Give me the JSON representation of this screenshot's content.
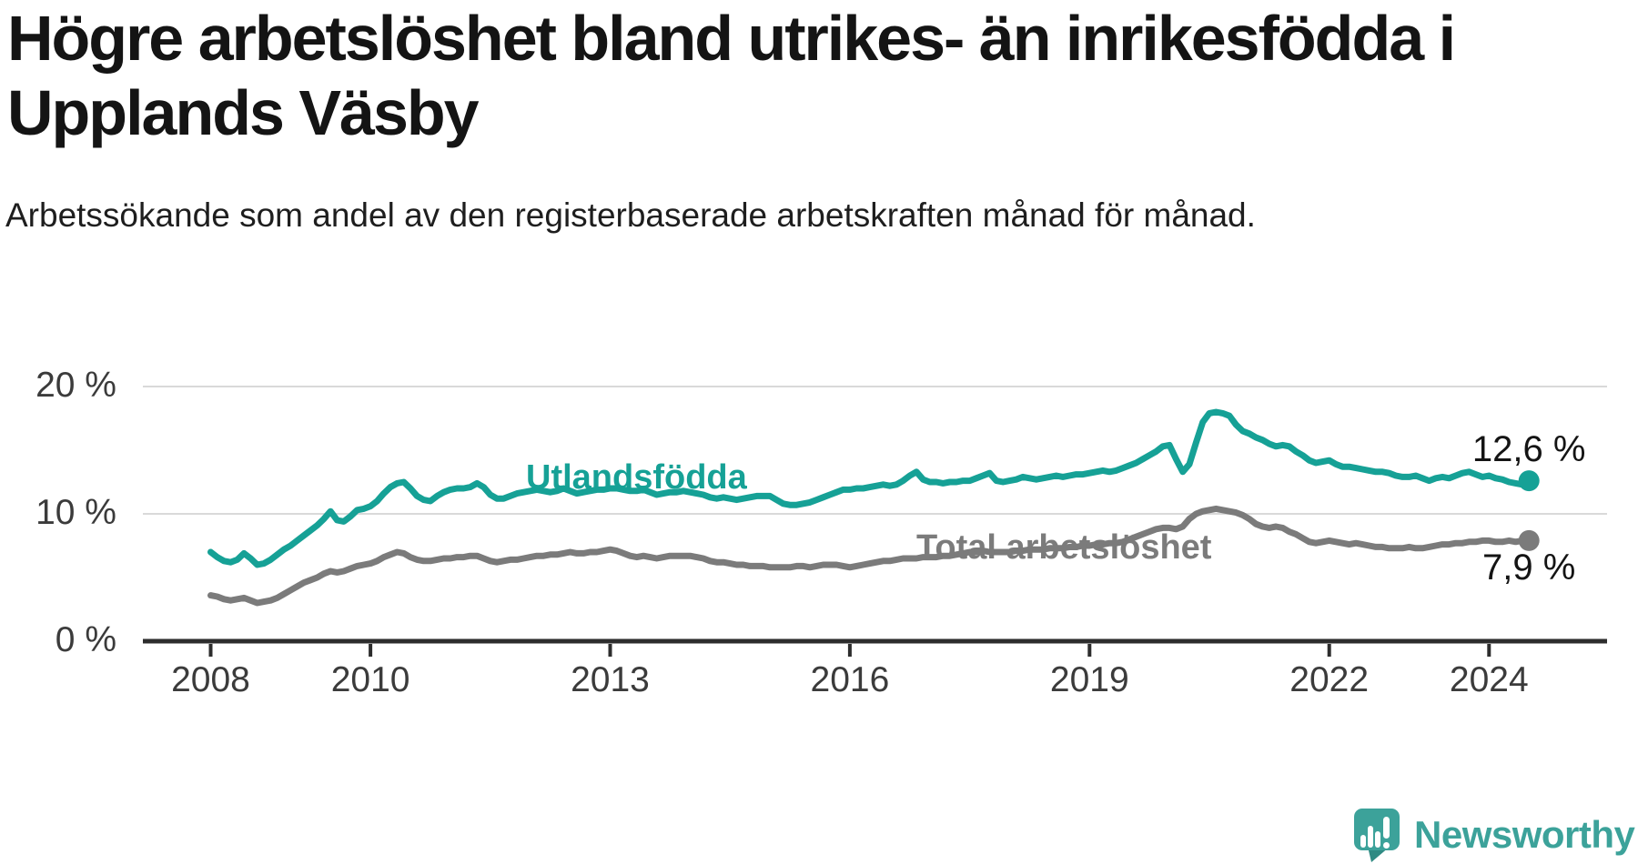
{
  "chart_data": {
    "type": "line",
    "title": "Högre arbetslöshet bland utrikes- än inrikesfödda i Upplands Väsby",
    "subtitle": "Arbetssökande som andel av den registerbaserade arbetskraften månad för månad.",
    "x_unit": "month",
    "x_start": "2008-01",
    "x_end": "2024-07",
    "ylim": [
      0,
      21.5
    ],
    "grid": "horizontal",
    "legend_position": "inline-labels",
    "x_ticks": [
      {
        "value": 2008,
        "label": "2008"
      },
      {
        "value": 2010,
        "label": "2010"
      },
      {
        "value": 2013,
        "label": "2013"
      },
      {
        "value": 2016,
        "label": "2016"
      },
      {
        "value": 2019,
        "label": "2019"
      },
      {
        "value": 2022,
        "label": "2022"
      },
      {
        "value": 2024,
        "label": "2024"
      }
    ],
    "y_axis": [
      {
        "value": 0,
        "label": "0 %"
      },
      {
        "value": 10,
        "label": "10 %"
      },
      {
        "value": 20,
        "label": "20 %"
      }
    ],
    "series": [
      {
        "name": "Utlandsfödda",
        "color": "#16A196",
        "end_label": "12,6 %",
        "end_value": 12.6,
        "values": [
          7.0,
          6.6,
          6.3,
          6.2,
          6.4,
          6.9,
          6.5,
          6.0,
          6.1,
          6.4,
          6.8,
          7.2,
          7.5,
          7.9,
          8.3,
          8.7,
          9.1,
          9.6,
          10.2,
          9.5,
          9.4,
          9.8,
          10.3,
          10.4,
          10.6,
          11.0,
          11.6,
          12.1,
          12.4,
          12.5,
          12.0,
          11.4,
          11.1,
          11.0,
          11.4,
          11.7,
          11.9,
          12.0,
          12.0,
          12.1,
          12.4,
          12.1,
          11.5,
          11.2,
          11.2,
          11.4,
          11.6,
          11.7,
          11.8,
          11.9,
          11.8,
          11.7,
          11.8,
          12.0,
          11.8,
          11.6,
          11.7,
          11.8,
          11.9,
          11.9,
          12.0,
          12.0,
          11.9,
          11.8,
          11.8,
          11.9,
          11.7,
          11.5,
          11.6,
          11.7,
          11.7,
          11.8,
          11.7,
          11.6,
          11.5,
          11.3,
          11.2,
          11.3,
          11.2,
          11.1,
          11.2,
          11.3,
          11.4,
          11.4,
          11.4,
          11.1,
          10.8,
          10.7,
          10.7,
          10.8,
          10.9,
          11.1,
          11.3,
          11.5,
          11.7,
          11.9,
          11.9,
          12.0,
          12.0,
          12.1,
          12.2,
          12.3,
          12.2,
          12.3,
          12.6,
          13.0,
          13.3,
          12.7,
          12.5,
          12.5,
          12.4,
          12.5,
          12.5,
          12.6,
          12.6,
          12.8,
          13.0,
          13.2,
          12.6,
          12.5,
          12.6,
          12.7,
          12.9,
          12.8,
          12.7,
          12.8,
          12.9,
          13.0,
          12.9,
          13.0,
          13.1,
          13.1,
          13.2,
          13.3,
          13.4,
          13.3,
          13.4,
          13.6,
          13.8,
          14.0,
          14.3,
          14.6,
          14.9,
          15.3,
          15.4,
          14.3,
          13.3,
          13.9,
          15.6,
          17.2,
          17.9,
          18.0,
          17.9,
          17.7,
          17.0,
          16.5,
          16.3,
          16.0,
          15.8,
          15.5,
          15.3,
          15.4,
          15.3,
          14.9,
          14.6,
          14.2,
          14.0,
          14.1,
          14.2,
          13.9,
          13.7,
          13.7,
          13.6,
          13.5,
          13.4,
          13.3,
          13.3,
          13.2,
          13.0,
          12.9,
          12.9,
          13.0,
          12.8,
          12.6,
          12.8,
          12.9,
          12.8,
          13.0,
          13.2,
          13.3,
          13.1,
          12.9,
          13.0,
          12.8,
          12.7,
          12.5,
          12.4,
          12.3,
          12.6
        ]
      },
      {
        "name": "Total arbetslöshet",
        "color": "#7B7B7B",
        "end_label": "7,9 %",
        "end_value": 7.9,
        "values": [
          3.6,
          3.5,
          3.3,
          3.2,
          3.3,
          3.4,
          3.2,
          3.0,
          3.1,
          3.2,
          3.4,
          3.7,
          4.0,
          4.3,
          4.6,
          4.8,
          5.0,
          5.3,
          5.5,
          5.4,
          5.5,
          5.7,
          5.9,
          6.0,
          6.1,
          6.3,
          6.6,
          6.8,
          7.0,
          6.9,
          6.6,
          6.4,
          6.3,
          6.3,
          6.4,
          6.5,
          6.5,
          6.6,
          6.6,
          6.7,
          6.7,
          6.5,
          6.3,
          6.2,
          6.3,
          6.4,
          6.4,
          6.5,
          6.6,
          6.7,
          6.7,
          6.8,
          6.8,
          6.9,
          7.0,
          6.9,
          6.9,
          7.0,
          7.0,
          7.1,
          7.2,
          7.1,
          6.9,
          6.7,
          6.6,
          6.7,
          6.6,
          6.5,
          6.6,
          6.7,
          6.7,
          6.7,
          6.7,
          6.6,
          6.5,
          6.3,
          6.2,
          6.2,
          6.1,
          6.0,
          6.0,
          5.9,
          5.9,
          5.9,
          5.8,
          5.8,
          5.8,
          5.8,
          5.9,
          5.9,
          5.8,
          5.9,
          6.0,
          6.0,
          6.0,
          5.9,
          5.8,
          5.9,
          6.0,
          6.1,
          6.2,
          6.3,
          6.3,
          6.4,
          6.5,
          6.5,
          6.5,
          6.6,
          6.6,
          6.6,
          6.7,
          6.7,
          6.8,
          6.9,
          7.0,
          7.0,
          7.1,
          7.0,
          7.0,
          7.0,
          7.0,
          7.1,
          7.1,
          7.2,
          7.2,
          7.2,
          7.3,
          7.3,
          7.3,
          7.4,
          7.4,
          7.5,
          7.5,
          7.6,
          7.6,
          7.7,
          7.7,
          7.8,
          8.0,
          8.2,
          8.4,
          8.6,
          8.8,
          8.9,
          8.9,
          8.8,
          9.0,
          9.6,
          10.0,
          10.2,
          10.3,
          10.4,
          10.3,
          10.2,
          10.1,
          9.9,
          9.6,
          9.2,
          9.0,
          8.9,
          9.0,
          8.9,
          8.6,
          8.4,
          8.1,
          7.8,
          7.7,
          7.8,
          7.9,
          7.8,
          7.7,
          7.6,
          7.7,
          7.6,
          7.5,
          7.4,
          7.4,
          7.3,
          7.3,
          7.3,
          7.4,
          7.3,
          7.3,
          7.4,
          7.5,
          7.6,
          7.6,
          7.7,
          7.7,
          7.8,
          7.8,
          7.9,
          7.9,
          7.8,
          7.8,
          7.9,
          7.8,
          7.9,
          7.9
        ]
      }
    ]
  },
  "branding": {
    "logo_text": "Newsworthy",
    "logo_icon": "newsworthy-speech-bubble-bar-chart-icon",
    "logo_color": "#3CA29A"
  },
  "style_colors": {
    "axis": "#2d2d2d",
    "gridline": "#d9d9d9",
    "tick_label": "#3b3b3b",
    "title_text": "#141414"
  }
}
